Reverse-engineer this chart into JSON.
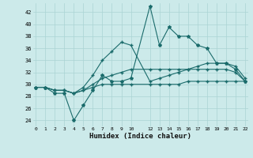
{
  "x": [
    0,
    1,
    2,
    3,
    4,
    5,
    6,
    7,
    8,
    9,
    10,
    12,
    13,
    14,
    15,
    16,
    17,
    18,
    19,
    20,
    21,
    22
  ],
  "line1": [
    29.5,
    29.5,
    28.5,
    28.5,
    24.0,
    26.5,
    29.0,
    31.5,
    30.5,
    30.5,
    31.0,
    43.0,
    36.5,
    39.5,
    38.0,
    38.0,
    36.5,
    36.0,
    33.5,
    33.5,
    32.5,
    30.5
  ],
  "line2": [
    29.5,
    29.5,
    29.0,
    29.0,
    28.5,
    29.5,
    31.5,
    34.0,
    35.5,
    37.0,
    36.5,
    30.5,
    31.0,
    31.5,
    32.0,
    32.5,
    33.0,
    33.5,
    33.5,
    33.5,
    33.0,
    31.0
  ],
  "line3": [
    29.5,
    29.5,
    29.0,
    29.0,
    28.5,
    29.0,
    30.0,
    31.0,
    31.5,
    32.0,
    32.5,
    32.5,
    32.5,
    32.5,
    32.5,
    32.5,
    32.5,
    32.5,
    32.5,
    32.5,
    32.0,
    30.5
  ],
  "line4": [
    29.5,
    29.5,
    29.0,
    29.0,
    28.5,
    29.0,
    29.5,
    30.0,
    30.0,
    30.0,
    30.0,
    30.0,
    30.0,
    30.0,
    30.0,
    30.5,
    30.5,
    30.5,
    30.5,
    30.5,
    30.5,
    30.5
  ],
  "color": "#1a6b6b",
  "bg_color": "#cceaea",
  "grid_color": "#aad4d4",
  "xlabel": "Humidex (Indice chaleur)",
  "ylim": [
    23,
    43.5
  ],
  "xlim": [
    -0.3,
    22.3
  ],
  "yticks": [
    24,
    26,
    28,
    30,
    32,
    34,
    36,
    38,
    40,
    42
  ],
  "xticks": [
    0,
    1,
    2,
    3,
    4,
    5,
    6,
    7,
    8,
    9,
    10,
    12,
    13,
    14,
    15,
    16,
    17,
    18,
    19,
    20,
    21,
    22
  ],
  "xtick_labels": [
    "0",
    "1",
    "2",
    "3",
    "4",
    "5",
    "6",
    "7",
    "8",
    "9",
    "10",
    "12",
    "13",
    "14",
    "15",
    "16",
    "17",
    "18",
    "19",
    "20",
    "21",
    "22"
  ]
}
